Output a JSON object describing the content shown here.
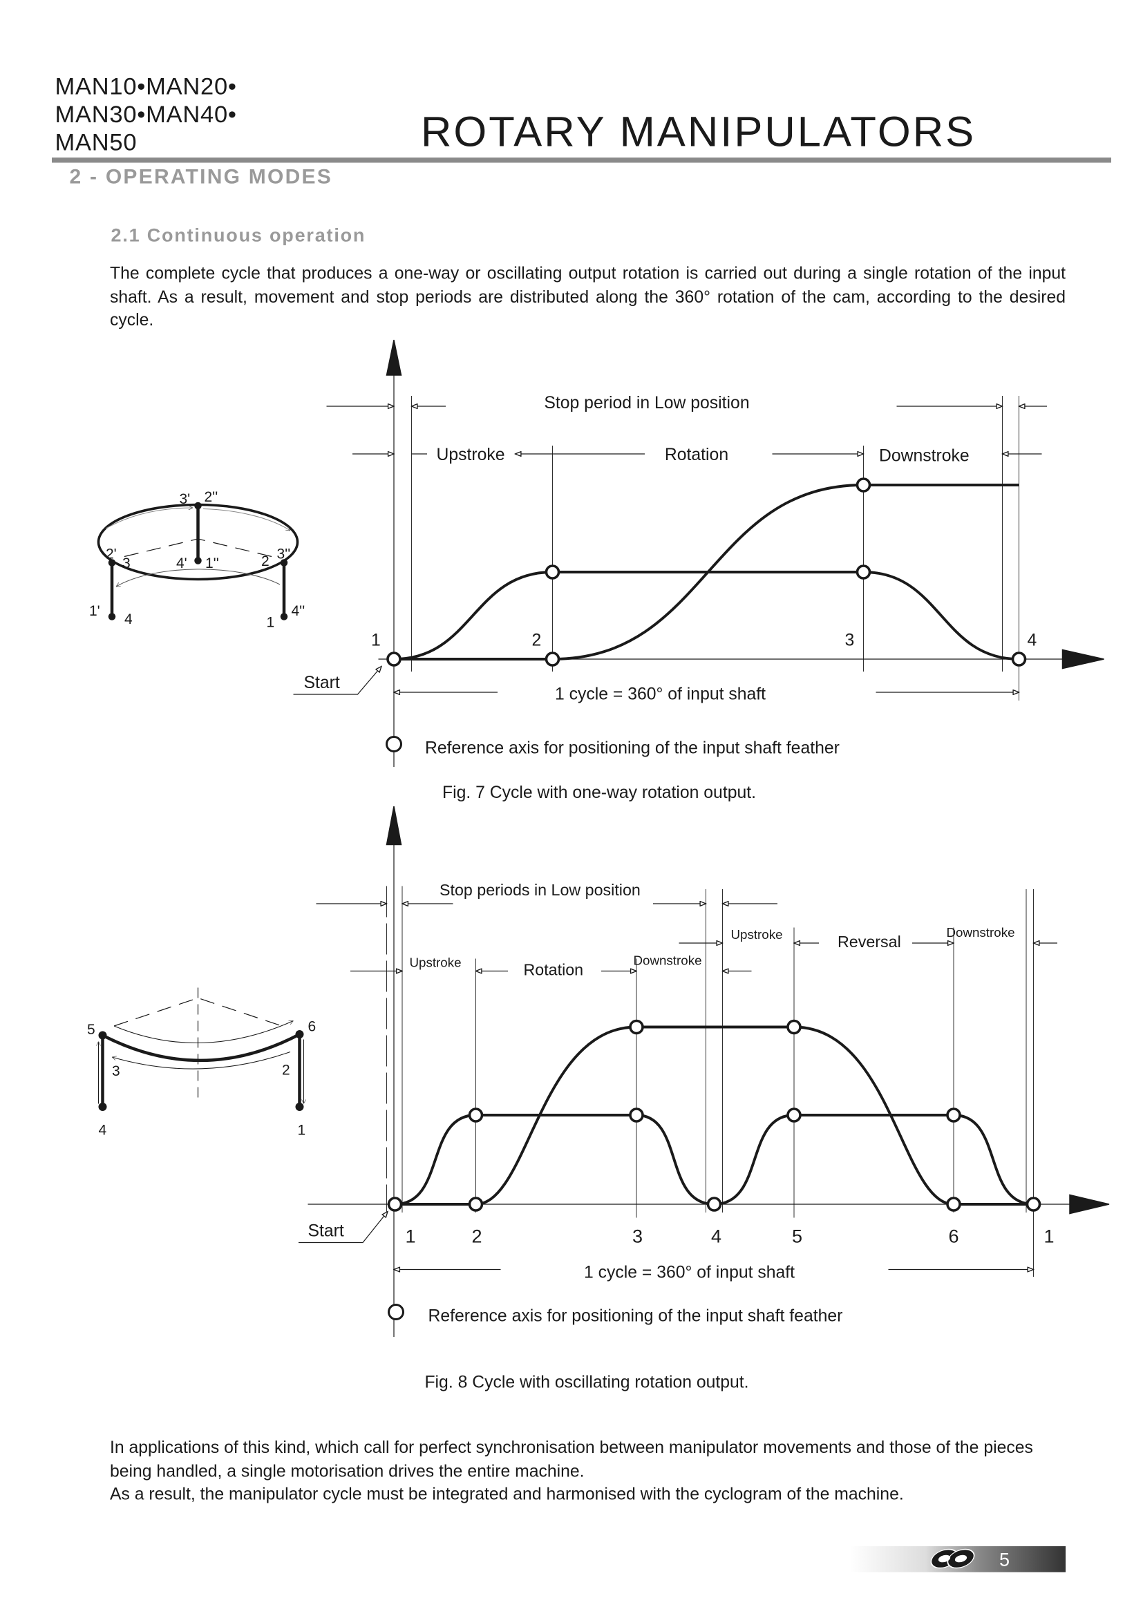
{
  "header": {
    "models": [
      "MAN10•MAN20•",
      "MAN30•MAN40•",
      "MAN50"
    ],
    "title": "ROTARY MANIPULATORS"
  },
  "section": "2 - OPERATING MODES",
  "subsection": "2.1  Continuous operation",
  "intro": "The complete cycle that produces a one-way or oscillating output rotation is carried out during a single rotation of the input shaft. As a result, movement and stop periods are distributed along the 360° rotation of the cam, according to the desired cycle.",
  "fig7": {
    "stop_label": "Stop period in Low position",
    "phases": [
      "Upstroke",
      "Rotation",
      "Downstroke"
    ],
    "points": [
      "1",
      "2",
      "3",
      "4"
    ],
    "start": "Start",
    "cycle": "1 cycle = 360° of input shaft",
    "reference": "Reference axis for positioning of the input shaft feather",
    "caption": "Fig. 7  Cycle with one-way rotation output.",
    "sketch_labels": {
      "a": "3'",
      "b": "2''",
      "c": "2'",
      "d": "3",
      "e": "4'",
      "f": "1''",
      "g": "2",
      "h": "3''",
      "i": "1'",
      "j": "4",
      "k": "1",
      "l": "4''"
    }
  },
  "fig8": {
    "stop_label": "Stop periods in Low position",
    "phases": [
      "Upstroke",
      "Rotation",
      "Downstroke",
      "Upstroke",
      "Reversal",
      "Downstroke"
    ],
    "points": [
      "1",
      "2",
      "3",
      "4",
      "5",
      "6",
      "1"
    ],
    "start": "Start",
    "cycle": "1 cycle = 360° of input shaft",
    "reference": "Reference axis for positioning of the input shaft feather",
    "caption": "Fig. 8  Cycle with oscillating rotation output.",
    "sketch_labels": [
      "5",
      "6",
      "3",
      "2",
      "4",
      "1"
    ]
  },
  "outro": [
    "In applications of this kind, which call for perfect synchronisation between manipulator movements and those of the pieces being handled, a single motorisation drives the entire machine.",
    "As a result, the manipulator cycle must be integrated and harmonised with the cyclogram of the machine."
  ],
  "footer": {
    "page": "5",
    "logo": "logo"
  },
  "colors": {
    "rule": "#8a8a8a",
    "heading": "#9a9a9a"
  }
}
